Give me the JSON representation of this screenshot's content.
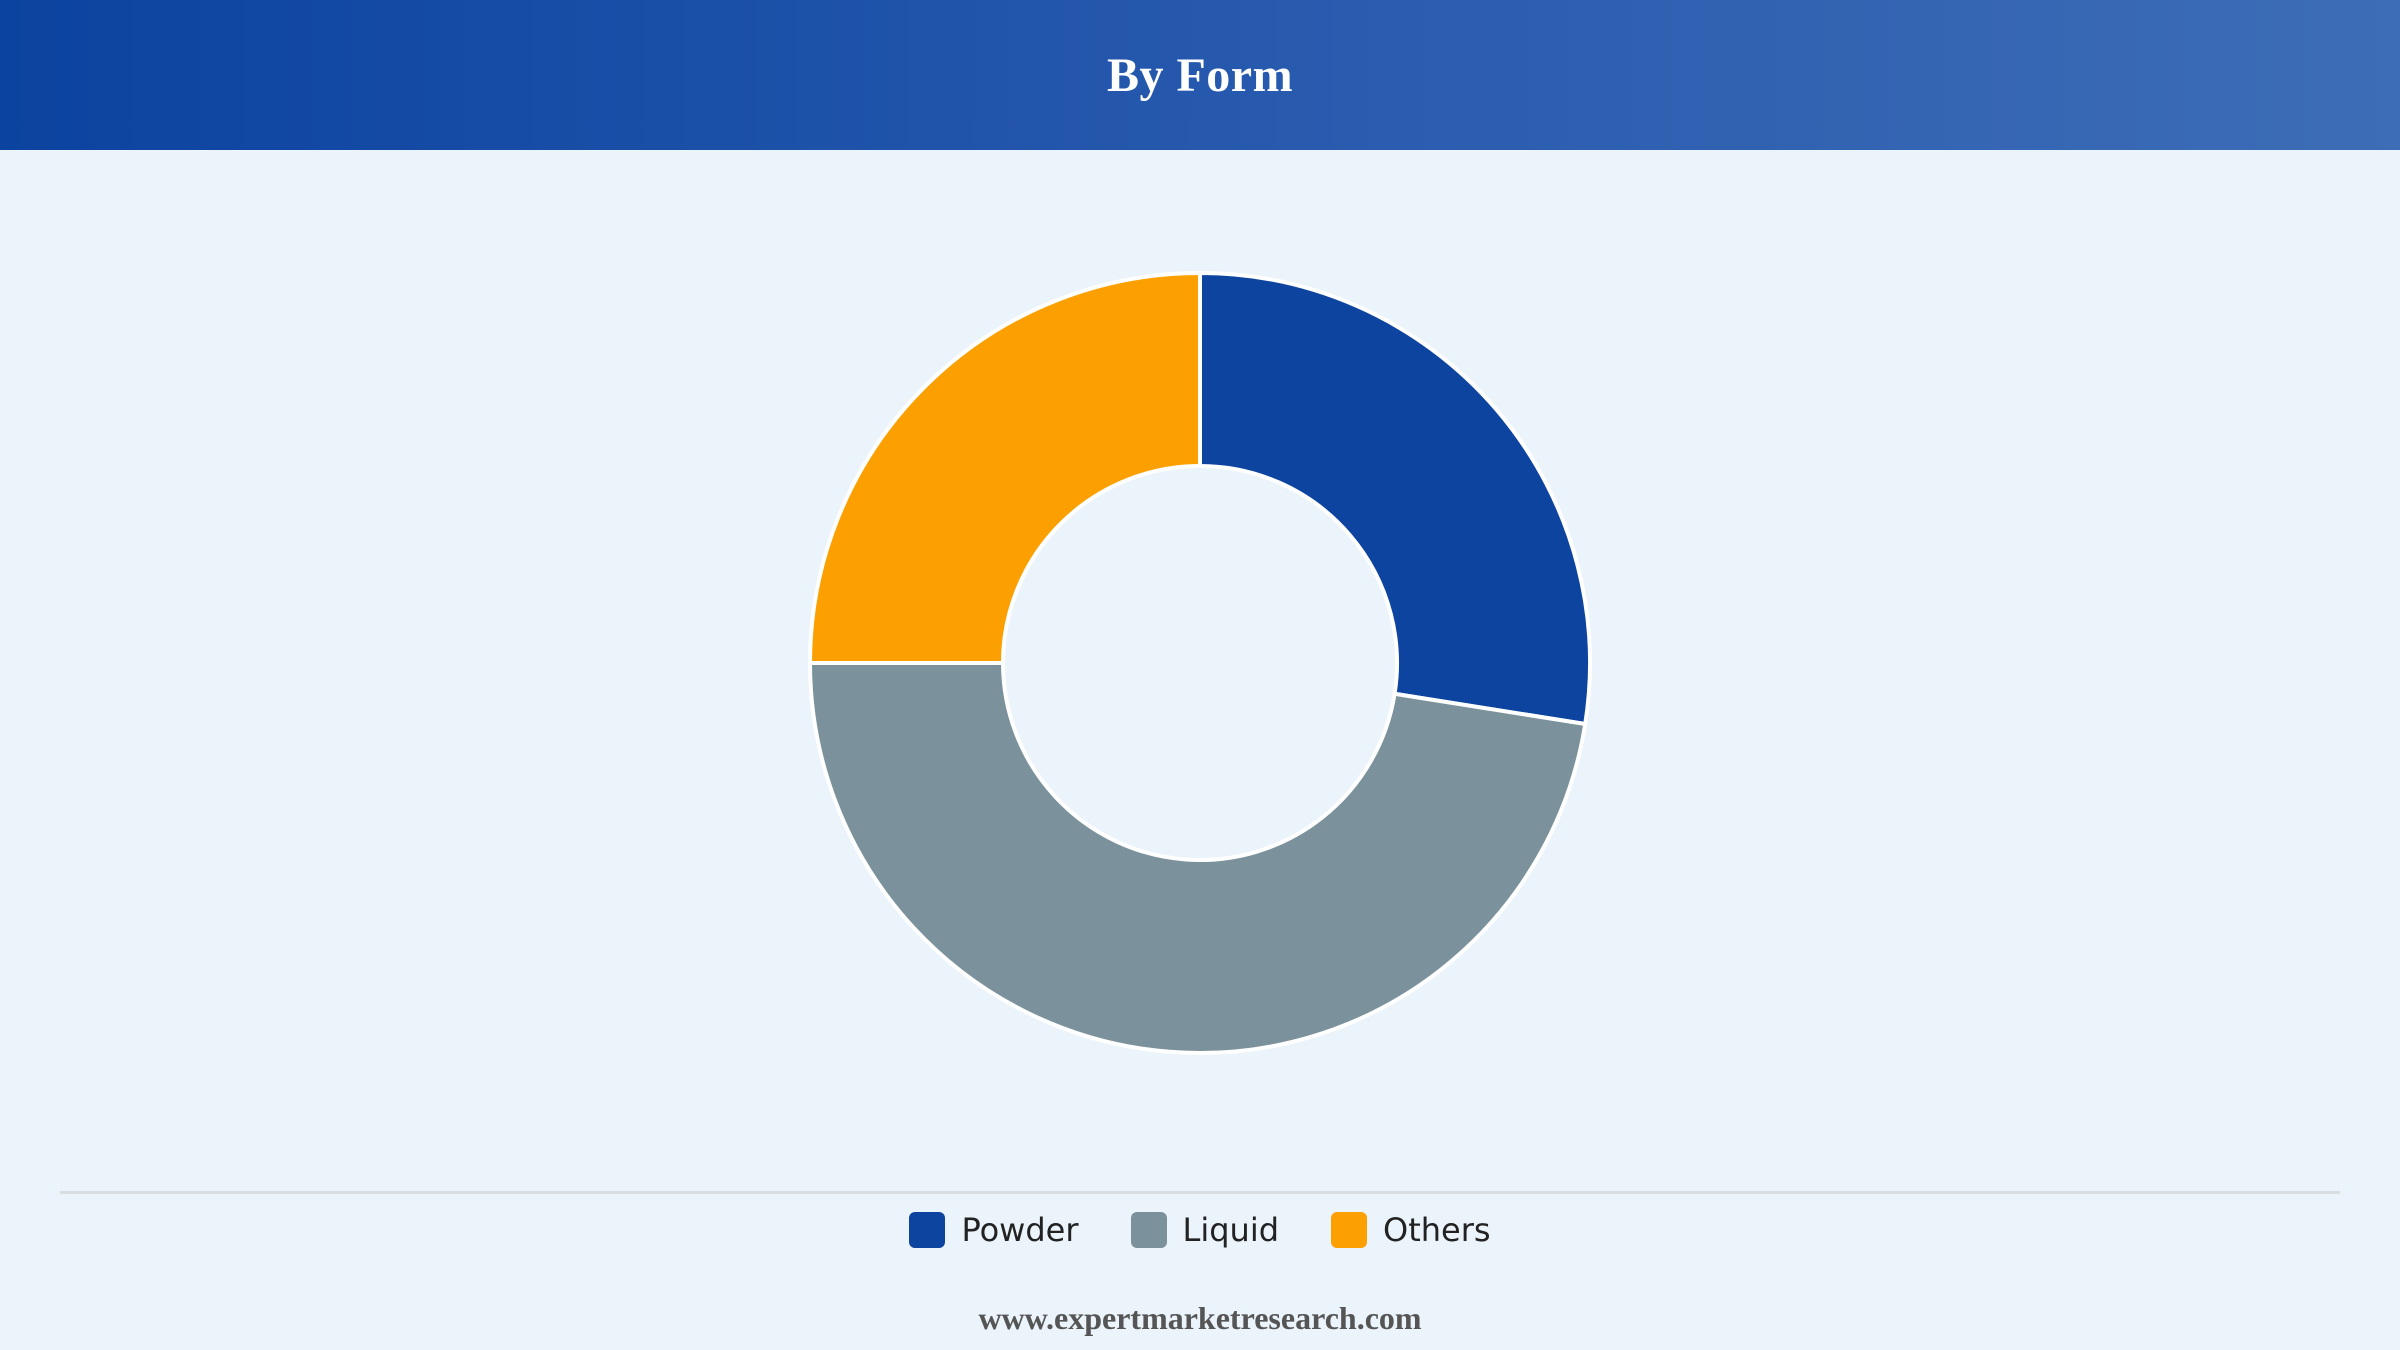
{
  "header": {
    "title": "By Form"
  },
  "chart_data": {
    "type": "pie",
    "donut": true,
    "title": "By Form",
    "categories": [
      "Powder",
      "Liquid",
      "Others"
    ],
    "values": [
      27.5,
      47.5,
      25.0
    ],
    "colors": [
      "#0d44a0",
      "#7b919b",
      "#fba000"
    ],
    "legend_position": "bottom"
  },
  "footer": {
    "text": "www.expertmarketresearch.com"
  }
}
